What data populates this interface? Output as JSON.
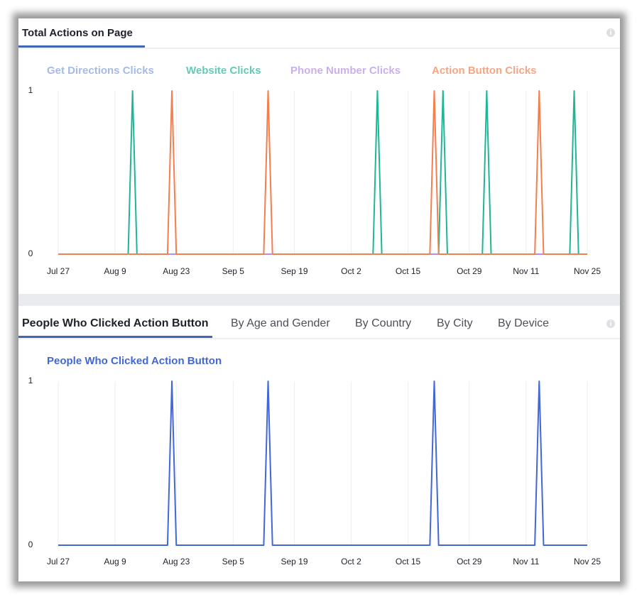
{
  "panels": [
    {
      "tabs": [
        "Total Actions on Page"
      ]
    },
    {
      "tabs": [
        "People Who Clicked Action Button",
        "By Age and Gender",
        "By Country",
        "By City",
        "By Device"
      ]
    }
  ],
  "chart_data": [
    {
      "type": "line",
      "categories": [
        "Jul 27",
        null,
        null,
        null,
        null,
        null,
        null,
        null,
        null,
        null,
        null,
        null,
        null,
        "Aug 9",
        null,
        null,
        null,
        null,
        null,
        null,
        null,
        null,
        null,
        null,
        null,
        null,
        null,
        "Aug 23",
        null,
        null,
        null,
        null,
        null,
        null,
        null,
        null,
        null,
        null,
        null,
        null,
        "Sep 5",
        null,
        null,
        null,
        null,
        null,
        null,
        null,
        null,
        null,
        null,
        null,
        null,
        null,
        "Sep 19",
        null,
        null,
        null,
        null,
        null,
        null,
        null,
        null,
        null,
        null,
        null,
        null,
        "Oct 2",
        null,
        null,
        null,
        null,
        null,
        null,
        null,
        null,
        null,
        null,
        null,
        null,
        "Oct 15",
        null,
        null,
        null,
        null,
        null,
        null,
        null,
        null,
        null,
        null,
        null,
        null,
        null,
        "Oct 29",
        null,
        null,
        null,
        null,
        null,
        null,
        null,
        null,
        null,
        null,
        null,
        null,
        "Nov 11",
        null,
        null,
        null,
        null,
        null,
        null,
        null,
        null,
        null,
        null,
        null,
        null,
        null,
        "Nov 25"
      ],
      "series": [
        {
          "name": "Get Directions Clicks",
          "color": "#7f9de0",
          "values": [
            0,
            0,
            0,
            0,
            0,
            0,
            0,
            0,
            0,
            0,
            0,
            0,
            0,
            0,
            0,
            0,
            0,
            0,
            0,
            0,
            0,
            0,
            0,
            0,
            0,
            0,
            0,
            0,
            0,
            0,
            0,
            0,
            0,
            0,
            0,
            0,
            0,
            0,
            0,
            0,
            0,
            0,
            0,
            0,
            0,
            0,
            0,
            0,
            0,
            0,
            0,
            0,
            0,
            0,
            0,
            0,
            0,
            0,
            0,
            0,
            0,
            0,
            0,
            0,
            0,
            0,
            0,
            0,
            0,
            0,
            0,
            0,
            0,
            0,
            0,
            0,
            0,
            0,
            0,
            0,
            0,
            0,
            0,
            0,
            0,
            0,
            0,
            0,
            0,
            0,
            0,
            0,
            0,
            0,
            0,
            0,
            0,
            0,
            0,
            0,
            0,
            0,
            0,
            0,
            0,
            0,
            0,
            0,
            0,
            0,
            0,
            0,
            0,
            0,
            0,
            0,
            0,
            0,
            0,
            0,
            0,
            0
          ]
        },
        {
          "name": "Website Clicks",
          "color": "#20b597",
          "values": [
            0,
            0,
            0,
            0,
            0,
            0,
            0,
            0,
            0,
            0,
            0,
            0,
            0,
            0,
            0,
            0,
            0,
            1,
            0,
            0,
            0,
            0,
            0,
            0,
            0,
            0,
            0,
            0,
            0,
            0,
            0,
            0,
            0,
            0,
            0,
            0,
            0,
            0,
            0,
            0,
            0,
            0,
            0,
            0,
            0,
            0,
            0,
            0,
            0,
            0,
            0,
            0,
            0,
            0,
            0,
            0,
            0,
            0,
            0,
            0,
            0,
            0,
            0,
            0,
            0,
            0,
            0,
            0,
            0,
            0,
            0,
            0,
            0,
            1,
            0,
            0,
            0,
            0,
            0,
            0,
            0,
            0,
            0,
            0,
            0,
            0,
            0,
            0,
            1,
            0,
            0,
            0,
            0,
            0,
            0,
            0,
            0,
            0,
            1,
            0,
            0,
            0,
            0,
            0,
            0,
            0,
            0,
            0,
            0,
            0,
            0,
            0,
            0,
            0,
            0,
            0,
            0,
            0,
            1,
            0,
            0,
            0
          ]
        },
        {
          "name": "Phone Number Clicks",
          "color": "#b48ee6",
          "values": [
            0,
            0,
            0,
            0,
            0,
            0,
            0,
            0,
            0,
            0,
            0,
            0,
            0,
            0,
            0,
            0,
            0,
            0,
            0,
            0,
            0,
            0,
            0,
            0,
            0,
            0,
            0,
            0,
            0,
            0,
            0,
            0,
            0,
            0,
            0,
            0,
            0,
            0,
            0,
            0,
            0,
            0,
            0,
            0,
            0,
            0,
            0,
            0,
            0,
            0,
            0,
            0,
            0,
            0,
            0,
            0,
            0,
            0,
            0,
            0,
            0,
            0,
            0,
            0,
            0,
            0,
            0,
            0,
            0,
            0,
            0,
            0,
            0,
            0,
            0,
            0,
            0,
            0,
            0,
            0,
            0,
            0,
            0,
            0,
            0,
            0,
            0,
            0,
            0,
            0,
            0,
            0,
            0,
            0,
            0,
            0,
            0,
            0,
            0,
            0,
            0,
            0,
            0,
            0,
            0,
            0,
            0,
            0,
            0,
            0,
            0,
            0,
            0,
            0,
            0,
            0,
            0,
            0,
            0,
            0,
            0,
            0
          ]
        },
        {
          "name": "Action Button Clicks",
          "color": "#f27f50",
          "values": [
            0,
            0,
            0,
            0,
            0,
            0,
            0,
            0,
            0,
            0,
            0,
            0,
            0,
            0,
            0,
            0,
            0,
            0,
            0,
            0,
            0,
            0,
            0,
            0,
            0,
            0,
            1,
            0,
            0,
            0,
            0,
            0,
            0,
            0,
            0,
            0,
            0,
            0,
            0,
            0,
            0,
            0,
            0,
            0,
            0,
            0,
            0,
            0,
            1,
            0,
            0,
            0,
            0,
            0,
            0,
            0,
            0,
            0,
            0,
            0,
            0,
            0,
            0,
            0,
            0,
            0,
            0,
            0,
            0,
            0,
            0,
            0,
            0,
            0,
            0,
            0,
            0,
            0,
            0,
            0,
            0,
            0,
            0,
            0,
            0,
            0,
            1,
            0,
            0,
            0,
            0,
            0,
            0,
            0,
            0,
            0,
            0,
            0,
            0,
            0,
            0,
            0,
            0,
            0,
            0,
            0,
            0,
            0,
            0,
            0,
            1,
            0,
            0,
            0,
            0,
            0,
            0,
            0,
            0,
            0,
            0,
            0
          ]
        }
      ],
      "ylim": [
        0,
        1
      ],
      "yticks": [
        0,
        1
      ],
      "grid": true
    },
    {
      "type": "line",
      "categories": [
        "Jul 27",
        null,
        null,
        null,
        null,
        null,
        null,
        null,
        null,
        null,
        null,
        null,
        null,
        "Aug 9",
        null,
        null,
        null,
        null,
        null,
        null,
        null,
        null,
        null,
        null,
        null,
        null,
        null,
        "Aug 23",
        null,
        null,
        null,
        null,
        null,
        null,
        null,
        null,
        null,
        null,
        null,
        null,
        "Sep 5",
        null,
        null,
        null,
        null,
        null,
        null,
        null,
        null,
        null,
        null,
        null,
        null,
        null,
        "Sep 19",
        null,
        null,
        null,
        null,
        null,
        null,
        null,
        null,
        null,
        null,
        null,
        null,
        "Oct 2",
        null,
        null,
        null,
        null,
        null,
        null,
        null,
        null,
        null,
        null,
        null,
        null,
        "Oct 15",
        null,
        null,
        null,
        null,
        null,
        null,
        null,
        null,
        null,
        null,
        null,
        null,
        null,
        "Oct 29",
        null,
        null,
        null,
        null,
        null,
        null,
        null,
        null,
        null,
        null,
        null,
        null,
        "Nov 11",
        null,
        null,
        null,
        null,
        null,
        null,
        null,
        null,
        null,
        null,
        null,
        null,
        null,
        "Nov 25"
      ],
      "series": [
        {
          "name": "People Who Clicked Action Button",
          "color": "#4267d6",
          "values": [
            0,
            0,
            0,
            0,
            0,
            0,
            0,
            0,
            0,
            0,
            0,
            0,
            0,
            0,
            0,
            0,
            0,
            0,
            0,
            0,
            0,
            0,
            0,
            0,
            0,
            0,
            1,
            0,
            0,
            0,
            0,
            0,
            0,
            0,
            0,
            0,
            0,
            0,
            0,
            0,
            0,
            0,
            0,
            0,
            0,
            0,
            0,
            0,
            1,
            0,
            0,
            0,
            0,
            0,
            0,
            0,
            0,
            0,
            0,
            0,
            0,
            0,
            0,
            0,
            0,
            0,
            0,
            0,
            0,
            0,
            0,
            0,
            0,
            0,
            0,
            0,
            0,
            0,
            0,
            0,
            0,
            0,
            0,
            0,
            0,
            0,
            1,
            0,
            0,
            0,
            0,
            0,
            0,
            0,
            0,
            0,
            0,
            0,
            0,
            0,
            0,
            0,
            0,
            0,
            0,
            0,
            0,
            0,
            0,
            0,
            1,
            0,
            0,
            0,
            0,
            0,
            0,
            0,
            0,
            0,
            0,
            0
          ]
        }
      ],
      "ylim": [
        0,
        1
      ],
      "yticks": [
        0,
        1
      ],
      "grid": true
    }
  ]
}
